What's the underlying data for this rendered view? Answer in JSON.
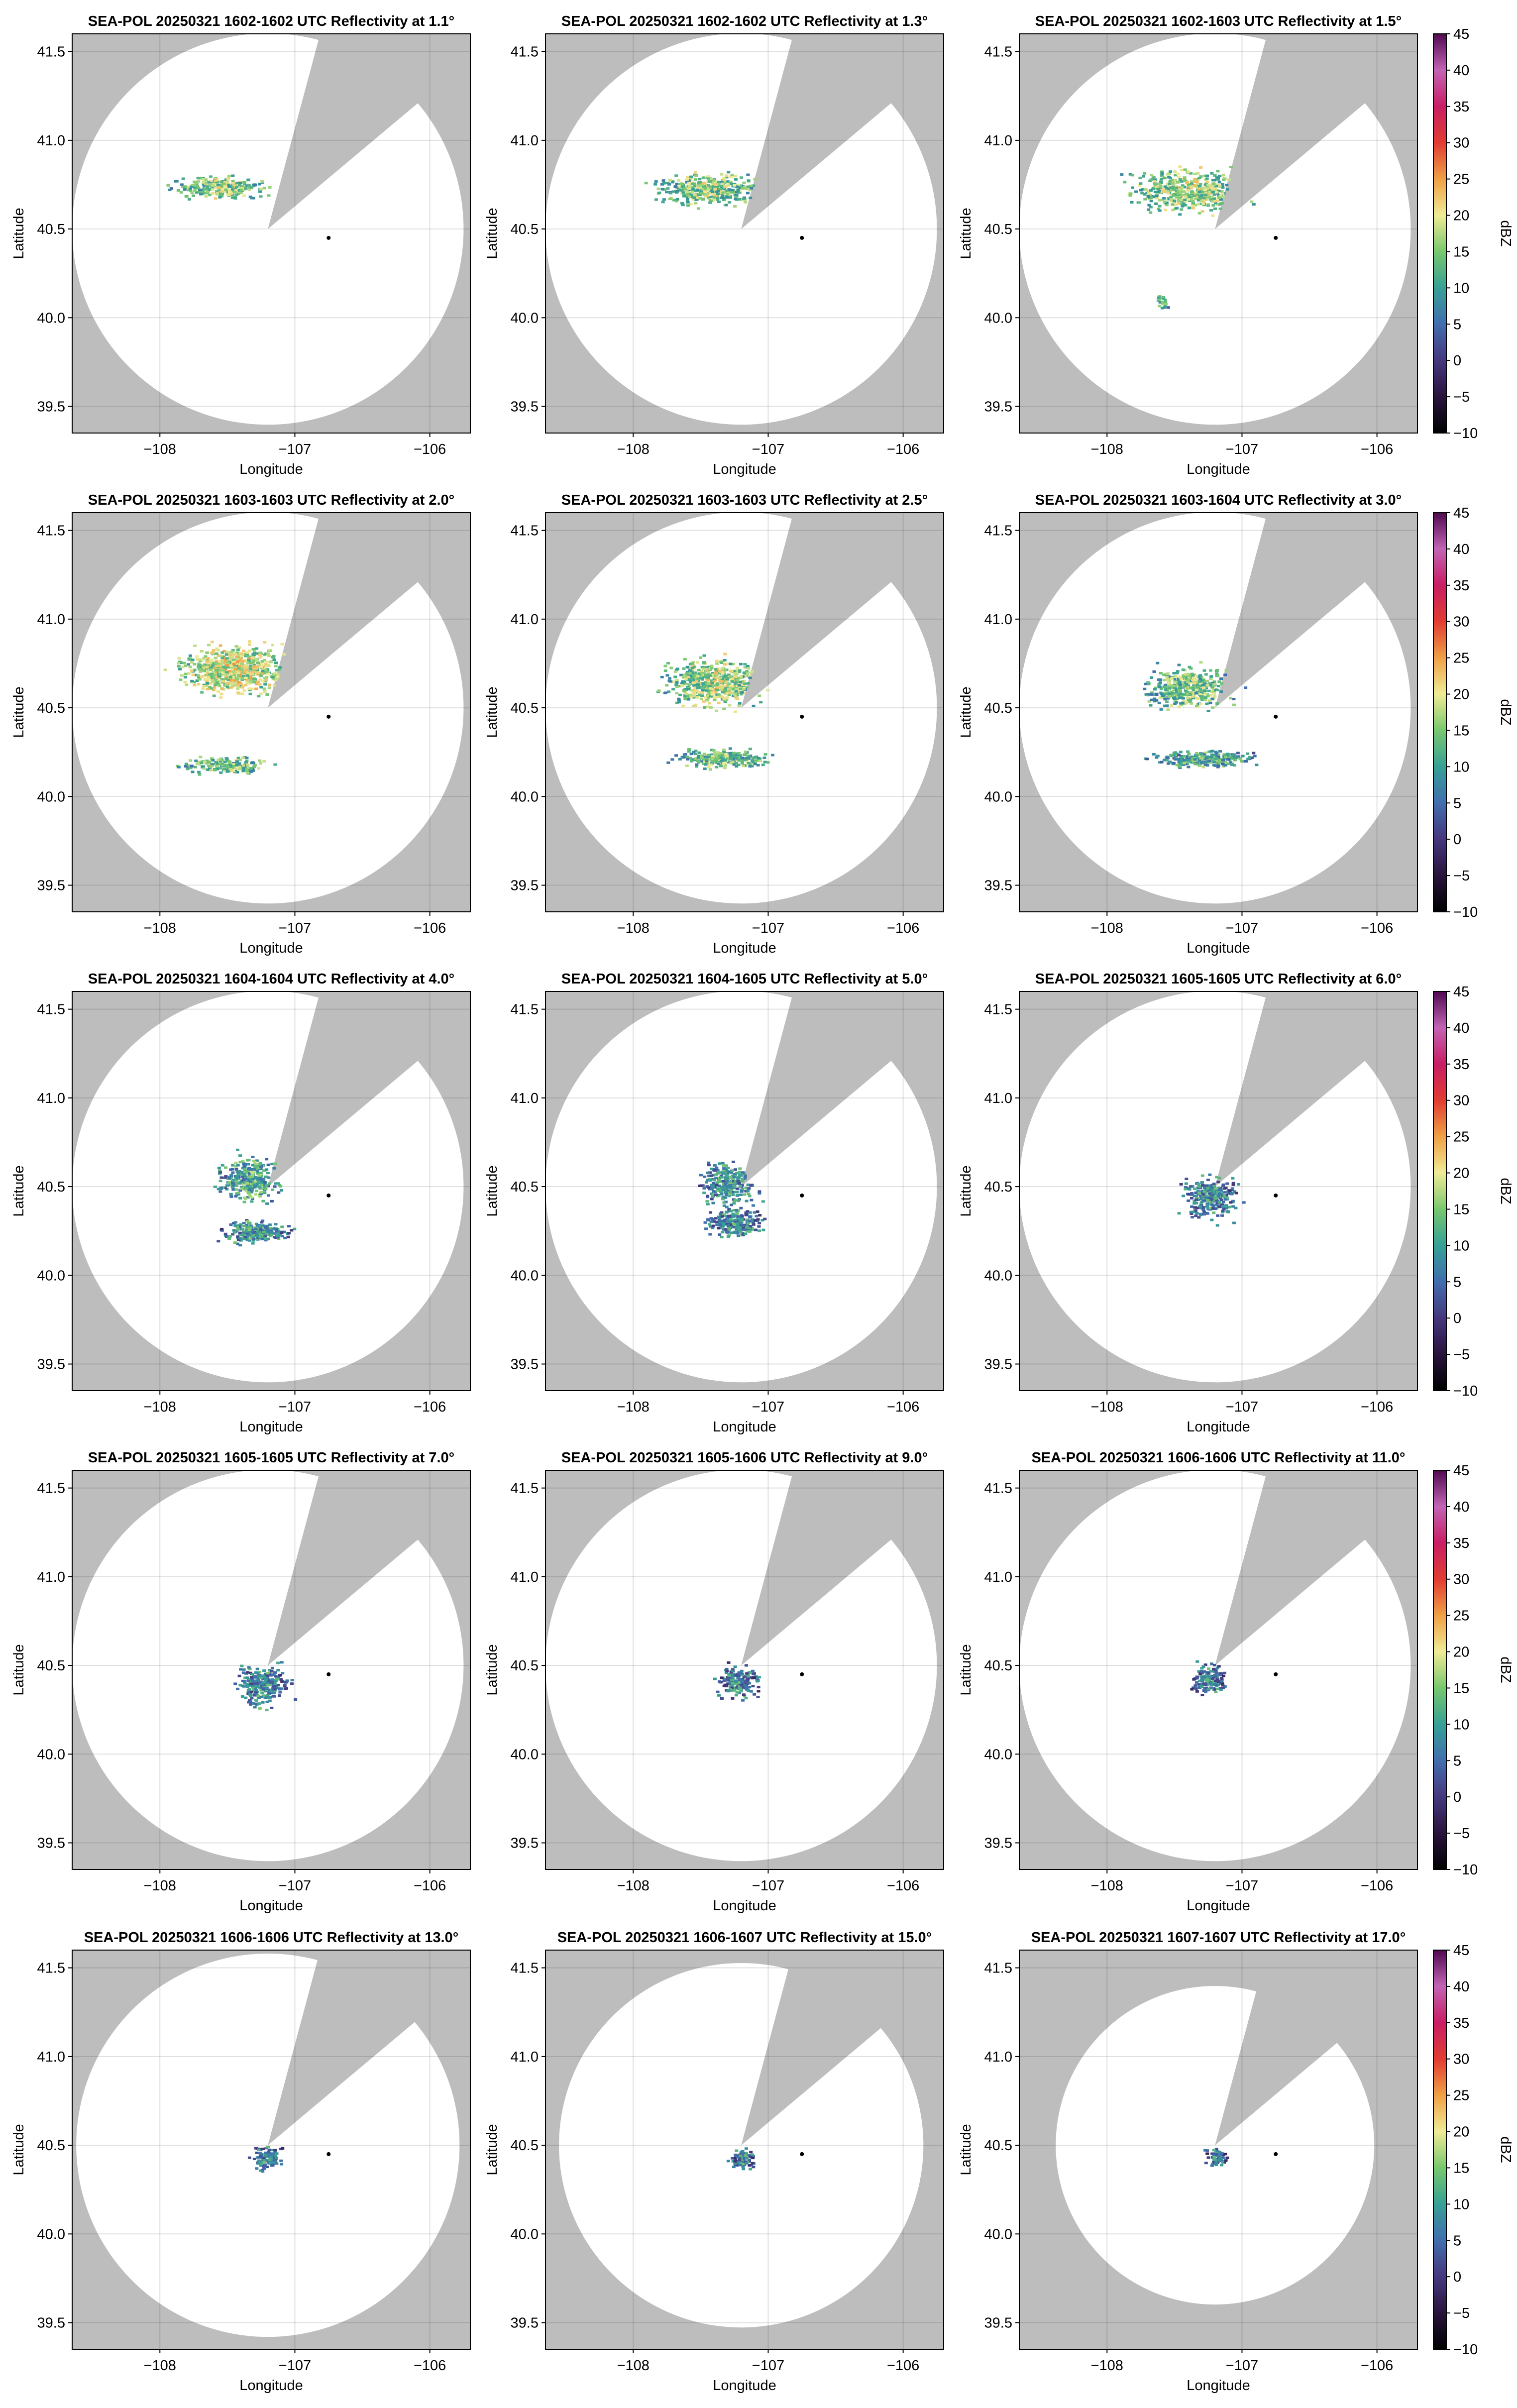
{
  "figure": {
    "x_label": "Longitude",
    "y_label": "Latitude",
    "x_tick_labels": [
      "−108",
      "−107",
      "−106"
    ],
    "y_tick_labels": [
      "39.5",
      "40.0",
      "40.5",
      "41.0",
      "41.5"
    ],
    "colorbar": {
      "label": "dBZ",
      "ticks": [
        "−10",
        "−5",
        "0",
        "5",
        "10",
        "15",
        "20",
        "25",
        "30",
        "35",
        "40",
        "45"
      ],
      "range": [
        -10,
        45
      ]
    },
    "colors": {
      "outside_range": "#bdbdbd",
      "beam_blockage": "#bdbdbd",
      "inside_range": "#ffffff"
    }
  },
  "chart_data": {
    "type": "heatmap",
    "x_range": [
      -108.65,
      -105.7
    ],
    "y_range": [
      39.35,
      41.6
    ],
    "radar_center": {
      "lon": -107.2,
      "lat": 40.5
    },
    "marker": {
      "lon": -106.75,
      "lat": 40.45
    },
    "panels": [
      {
        "title": "SEA-POL 20250321 1602-1602 UTC Reflectivity at 1.1°",
        "elevation": 1.1
      },
      {
        "title": "SEA-POL 20250321 1602-1602 UTC Reflectivity at 1.3°",
        "elevation": 1.3
      },
      {
        "title": "SEA-POL 20250321 1602-1603 UTC Reflectivity at 1.5°",
        "elevation": 1.5
      },
      {
        "title": "SEA-POL 20250321 1603-1603 UTC Reflectivity at 2.0°",
        "elevation": 2.0
      },
      {
        "title": "SEA-POL 20250321 1603-1603 UTC Reflectivity at 2.5°",
        "elevation": 2.5
      },
      {
        "title": "SEA-POL 20250321 1603-1604 UTC Reflectivity at 3.0°",
        "elevation": 3.0
      },
      {
        "title": "SEA-POL 20250321 1604-1604 UTC Reflectivity at 4.0°",
        "elevation": 4.0
      },
      {
        "title": "SEA-POL 20250321 1604-1605 UTC Reflectivity at 5.0°",
        "elevation": 5.0
      },
      {
        "title": "SEA-POL 20250321 1605-1605 UTC Reflectivity at 6.0°",
        "elevation": 6.0
      },
      {
        "title": "SEA-POL 20250321 1605-1605 UTC Reflectivity at 7.0°",
        "elevation": 7.0
      },
      {
        "title": "SEA-POL 20250321 1605-1606 UTC Reflectivity at 9.0°",
        "elevation": 9.0
      },
      {
        "title": "SEA-POL 20250321 1606-1606 UTC Reflectivity at 11.0°",
        "elevation": 11.0
      },
      {
        "title": "SEA-POL 20250321 1606-1606 UTC Reflectivity at 13.0°",
        "elevation": 13.0
      },
      {
        "title": "SEA-POL 20250321 1606-1607 UTC Reflectivity at 15.0°",
        "elevation": 15.0
      },
      {
        "title": "SEA-POL 20250321 1607-1607 UTC Reflectivity at 17.0°",
        "elevation": 17.0
      }
    ]
  }
}
